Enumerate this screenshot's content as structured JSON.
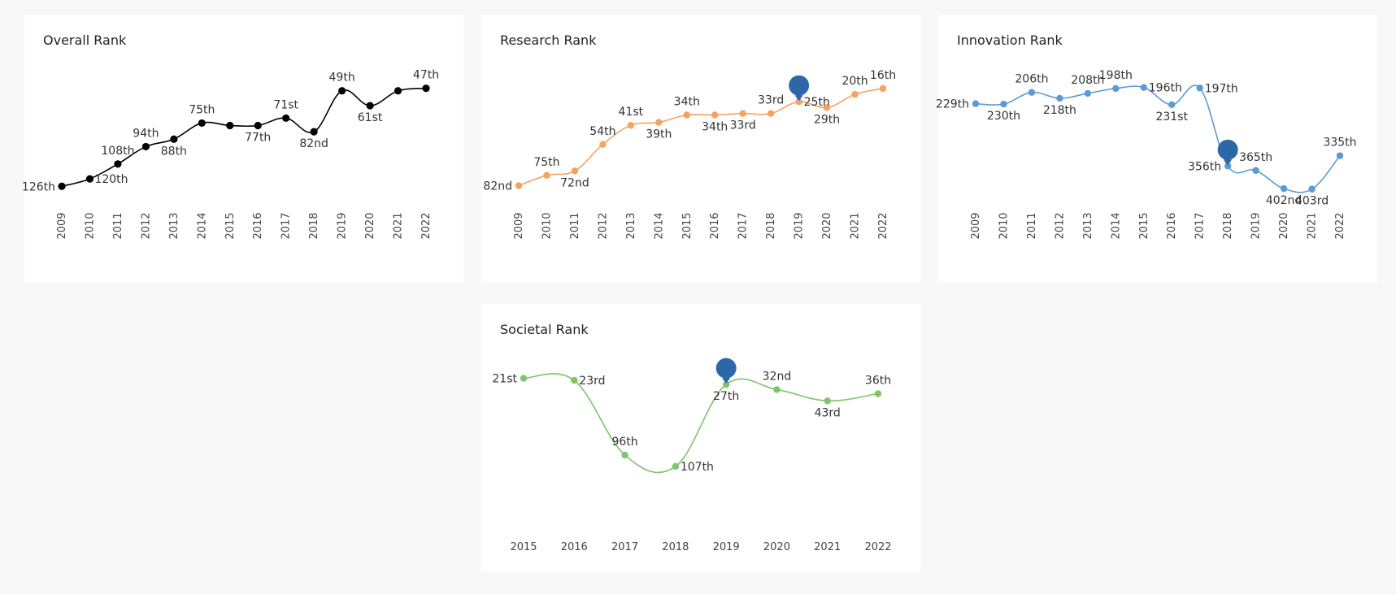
{
  "colors": {
    "overall": "#000000",
    "research": "#f4a460",
    "innovation": "#5b9bd5",
    "societal": "#7ec46a",
    "marker": "#2e67a8",
    "background": "#f8f8f8"
  },
  "chart_data": [
    {
      "type": "line",
      "title": "Overall Rank",
      "x": [
        "2009",
        "2010",
        "2011",
        "2012",
        "2013",
        "2014",
        "2015",
        "2016",
        "2017",
        "2018",
        "2019",
        "2020",
        "2021",
        "2022"
      ],
      "values": [
        126,
        120,
        108,
        94,
        88,
        75,
        77,
        77,
        71,
        82,
        49,
        61,
        49,
        47
      ],
      "labels": [
        "126th",
        "120th",
        "108th",
        "94th",
        "88th",
        "75th",
        "",
        "77th",
        "71st",
        "82nd",
        "49th",
        "61st",
        "",
        "47th"
      ],
      "label_pos": [
        "left",
        "right",
        "above",
        "above",
        "below",
        "above",
        "",
        "below",
        "above",
        "below",
        "above",
        "below",
        "",
        "above"
      ],
      "ylim_inverted": [
        40,
        135
      ],
      "highlight": null
    },
    {
      "type": "line",
      "title": "Research Rank",
      "x": [
        "2009",
        "2010",
        "2011",
        "2012",
        "2013",
        "2014",
        "2015",
        "2016",
        "2017",
        "2018",
        "2019",
        "2020",
        "2021",
        "2022"
      ],
      "values": [
        82,
        75,
        72,
        54,
        41,
        39,
        34,
        34,
        33,
        33,
        25,
        29,
        20,
        16
      ],
      "labels": [
        "82nd",
        "75th",
        "72nd",
        "54th",
        "41st",
        "39th",
        "34th",
        "34th",
        "33rd",
        "33rd",
        "25th",
        "29th",
        "20th",
        "16th"
      ],
      "label_pos": [
        "left",
        "above",
        "below",
        "above",
        "above",
        "below",
        "above",
        "below",
        "below",
        "above",
        "right",
        "below",
        "above",
        "above"
      ],
      "ylim_inverted": [
        10,
        90
      ],
      "highlight": "2019"
    },
    {
      "type": "line",
      "title": "Innovation Rank",
      "x": [
        "2009",
        "2010",
        "2011",
        "2012",
        "2013",
        "2014",
        "2015",
        "2016",
        "2017",
        "2018",
        "2019",
        "2020",
        "2021",
        "2022"
      ],
      "values": [
        229,
        230,
        206,
        218,
        208,
        198,
        196,
        231,
        197,
        356,
        365,
        402,
        403,
        335
      ],
      "labels": [
        "229th",
        "230th",
        "206th",
        "218th",
        "208th",
        "198th",
        "196th",
        "231st",
        "197th",
        "356th",
        "365th",
        "402nd",
        "403rd",
        "335th"
      ],
      "label_pos": [
        "left",
        "below",
        "above",
        "below",
        "above",
        "above",
        "right",
        "below",
        "right",
        "left",
        "above",
        "below",
        "below",
        "above"
      ],
      "ylim_inverted": [
        180,
        420
      ],
      "highlight": "2018"
    },
    {
      "type": "line",
      "title": "Societal Rank",
      "x": [
        "2015",
        "2016",
        "2017",
        "2018",
        "2019",
        "2020",
        "2021",
        "2022"
      ],
      "values": [
        21,
        23,
        96,
        107,
        27,
        32,
        43,
        36
      ],
      "labels": [
        "21st",
        "23rd",
        "96th",
        "107th",
        "27th",
        "32nd",
        "43rd",
        "36th"
      ],
      "label_pos": [
        "left",
        "right",
        "above",
        "right",
        "below",
        "above",
        "below",
        "above"
      ],
      "ylim_inverted": [
        15,
        115
      ],
      "highlight": "2019"
    }
  ]
}
